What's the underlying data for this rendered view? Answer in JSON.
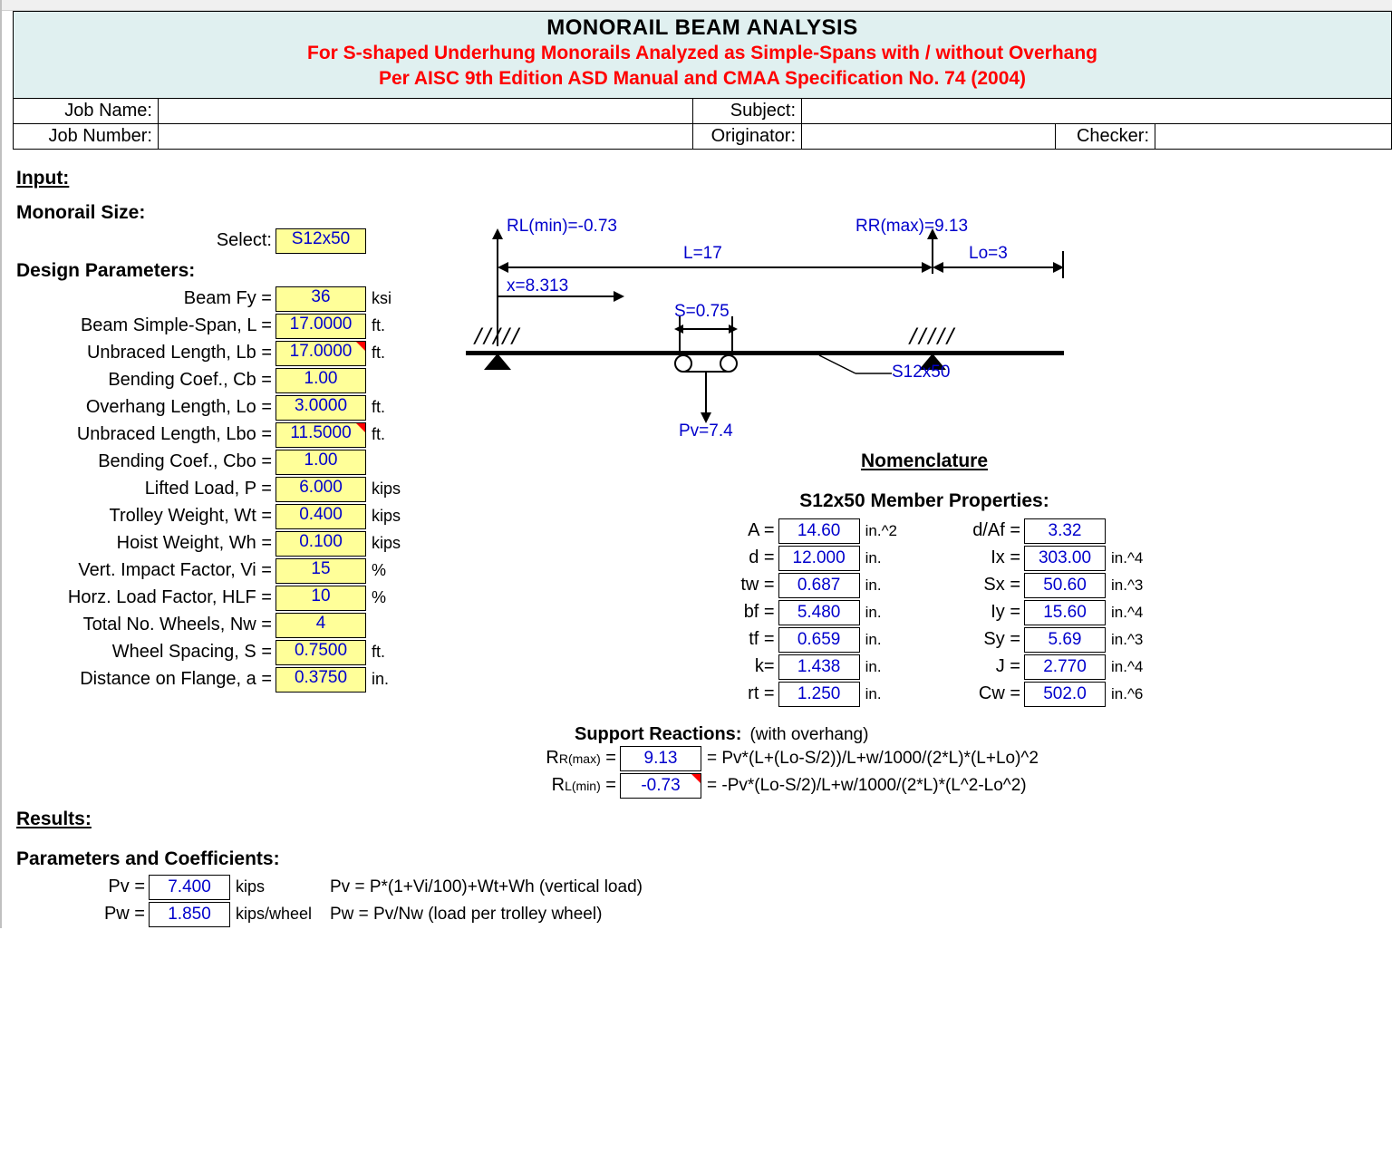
{
  "title": {
    "main": "MONORAIL BEAM ANALYSIS",
    "sub1": "For S-shaped Underhung Monorails Analyzed as Simple-Spans with / without Overhang",
    "sub2": "Per AISC 9th Edition ASD Manual and CMAA Specification No. 74 (2004)"
  },
  "info": {
    "job_name_label": "Job Name:",
    "job_name": "",
    "subject_label": "Subject:",
    "subject": "",
    "job_number_label": "Job Number:",
    "job_number": "",
    "originator_label": "Originator:",
    "originator": "",
    "checker_label": "Checker:",
    "checker": ""
  },
  "sections": {
    "input": "Input:",
    "monorail_size": "Monorail Size:",
    "select_label": "Select:",
    "design_params": "Design Parameters:",
    "results": "Results:",
    "params_coefs": "Parameters and Coefficients:",
    "nomenclature": "Nomenclature",
    "member_props": "S12x50 Member Properties:",
    "support_reactions": "Support Reactions:",
    "support_note": "(with overhang)"
  },
  "select_value": "S12x50",
  "params": [
    {
      "label": "Beam Fy =",
      "value": "36",
      "unit": "ksi"
    },
    {
      "label": "Beam Simple-Span, L =",
      "value": "17.0000",
      "unit": "ft."
    },
    {
      "label": "Unbraced Length, Lb =",
      "value": "17.0000",
      "unit": "ft.",
      "red": true
    },
    {
      "label": "Bending Coef., Cb =",
      "value": "1.00",
      "unit": ""
    },
    {
      "label": "Overhang Length, Lo =",
      "value": "3.0000",
      "unit": "ft."
    },
    {
      "label": "Unbraced Length, Lbo =",
      "value": "11.5000",
      "unit": "ft.",
      "red": true
    },
    {
      "label": "Bending Coef., Cbo =",
      "value": "1.00",
      "unit": ""
    },
    {
      "label": "Lifted Load, P =",
      "value": "6.000",
      "unit": "kips"
    },
    {
      "label": "Trolley Weight, Wt =",
      "value": "0.400",
      "unit": "kips"
    },
    {
      "label": "Hoist Weight, Wh =",
      "value": "0.100",
      "unit": "kips"
    },
    {
      "label": "Vert. Impact Factor, Vi =",
      "value": "15",
      "unit": "%"
    },
    {
      "label": "Horz. Load Factor, HLF =",
      "value": "10",
      "unit": "%"
    },
    {
      "label": "Total No. Wheels, Nw =",
      "value": "4",
      "unit": ""
    },
    {
      "label": "Wheel Spacing, S =",
      "value": "0.7500",
      "unit": "ft."
    },
    {
      "label": "Distance on Flange, a =",
      "value": "0.3750",
      "unit": "in."
    }
  ],
  "diagram": {
    "RLmin": "RL(min)=-0.73",
    "RRmax": "RR(max)=9.13",
    "L": "L=17",
    "Lo": "Lo=3",
    "x": "x=8.313",
    "S": "S=0.75",
    "Pv": "Pv=7.4",
    "member": "S12x50",
    "colors": {
      "text": "#0000cc",
      "line": "#000000"
    }
  },
  "props_left": [
    {
      "label": "A =",
      "value": "14.60",
      "unit": "in.^2"
    },
    {
      "label": "d =",
      "value": "12.000",
      "unit": "in."
    },
    {
      "label": "tw =",
      "value": "0.687",
      "unit": "in."
    },
    {
      "label": "bf =",
      "value": "5.480",
      "unit": "in."
    },
    {
      "label": "tf =",
      "value": "0.659",
      "unit": "in."
    },
    {
      "label": "k=",
      "value": "1.438",
      "unit": "in."
    },
    {
      "label": "rt =",
      "value": "1.250",
      "unit": "in."
    }
  ],
  "props_right": [
    {
      "label": "d/Af =",
      "value": "3.32",
      "unit": ""
    },
    {
      "label": "Ix =",
      "value": "303.00",
      "unit": "in.^4"
    },
    {
      "label": "Sx =",
      "value": "50.60",
      "unit": "in.^3"
    },
    {
      "label": "Iy =",
      "value": "15.60",
      "unit": "in.^4"
    },
    {
      "label": "Sy =",
      "value": "5.69",
      "unit": "in.^3"
    },
    {
      "label": "J =",
      "value": "2.770",
      "unit": "in.^4"
    },
    {
      "label": "Cw =",
      "value": "502.0",
      "unit": "in.^6"
    }
  ],
  "reactions": [
    {
      "label_html": "R<sub>R(max)</sub> =",
      "value": "9.13",
      "formula": "= Pv*(L+(Lo-S/2))/L+w/1000/(2*L)*(L+Lo)^2"
    },
    {
      "label_html": "R<sub>L(min)</sub> =",
      "value": "-0.73",
      "formula": "= -Pv*(Lo-S/2)/L+w/1000/(2*L)*(L^2-Lo^2)",
      "red": true
    }
  ],
  "coefs": [
    {
      "label": "Pv =",
      "value": "7.400",
      "unit": "kips",
      "formula": "Pv = P*(1+Vi/100)+Wt+Wh (vertical load)"
    },
    {
      "label": "Pw =",
      "value": "1.850",
      "unit": "kips/wheel",
      "formula": "Pw = Pv/Nw (load per trolley wheel)"
    }
  ]
}
